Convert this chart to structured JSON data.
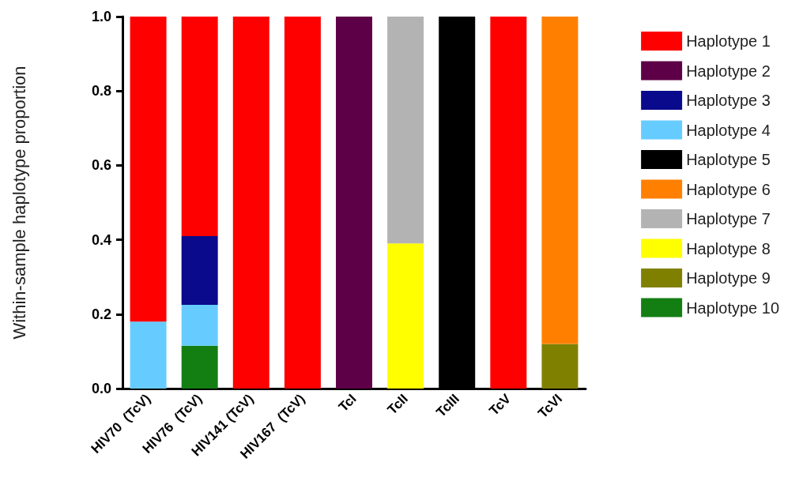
{
  "chart_data": {
    "type": "bar",
    "stacked": true,
    "ylabel": "Within-sample haplotype proportion",
    "categories": [
      "HIV70  (TcV)",
      "HIV76  (TcV)",
      "HIV141 (TcV)",
      "HIV167  (TcV)",
      "TcI",
      "TcII",
      "TcIII",
      "TcV",
      "TcVI"
    ],
    "ylim": [
      0,
      1
    ],
    "yticks": [
      {
        "value": 0,
        "label": "0.0"
      },
      0.2,
      0.4,
      0.6,
      0.8,
      {
        "value": 1,
        "label": "1.0"
      }
    ],
    "grid": false,
    "legend": "right",
    "series": [
      {
        "name": "Haplotype 10",
        "color": "#137f13",
        "values": [
          0,
          0.115,
          0,
          0,
          0,
          0,
          0,
          0,
          0
        ]
      },
      {
        "name": "Haplotype 9",
        "color": "#808000",
        "values": [
          0,
          0,
          0,
          0,
          0,
          0,
          0,
          0,
          0.12
        ]
      },
      {
        "name": "Haplotype 8",
        "color": "#ffff00",
        "values": [
          0,
          0,
          0,
          0,
          0,
          0.39,
          0,
          0,
          0
        ]
      },
      {
        "name": "Haplotype 7",
        "color": "#b3b3b3",
        "values": [
          0,
          0,
          0,
          0,
          0,
          0.61,
          0,
          0,
          0
        ]
      },
      {
        "name": "Haplotype 6",
        "color": "#ff8000",
        "values": [
          0,
          0,
          0,
          0,
          0,
          0,
          0,
          0,
          0.88
        ]
      },
      {
        "name": "Haplotype 5",
        "color": "#000000",
        "values": [
          0,
          0,
          0,
          0,
          0,
          0,
          1,
          0,
          0
        ]
      },
      {
        "name": "Haplotype 4",
        "color": "#66ccff",
        "values": [
          0.18,
          0.11,
          0,
          0,
          0,
          0,
          0,
          0,
          0
        ]
      },
      {
        "name": "Haplotype 3",
        "color": "#0a0a8c",
        "values": [
          0,
          0.185,
          0,
          0,
          0,
          0,
          0,
          0,
          0
        ]
      },
      {
        "name": "Haplotype 2",
        "color": "#5e0047",
        "values": [
          0,
          0,
          0,
          0,
          1,
          0,
          0,
          0,
          0
        ]
      },
      {
        "name": "Haplotype 1",
        "color": "#ff0000",
        "values": [
          0.82,
          0.59,
          1,
          1,
          0,
          0,
          0,
          1,
          0
        ]
      }
    ]
  }
}
